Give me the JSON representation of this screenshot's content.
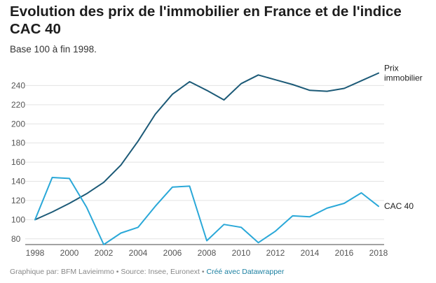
{
  "title": "Evolution des prix de l'immobilier en France et de l'indice CAC 40",
  "subtitle": "Base 100 à fin 1998.",
  "footer": {
    "prefix": "Graphique par: BFM Lavieimmo • Source: Insee, Euronext • ",
    "link": "Créé avec Datawrapper"
  },
  "colors": {
    "prix": "#1c5a77",
    "cac": "#2aa8d8",
    "grid": "#e3e3e3",
    "axis": "#444444"
  },
  "chart_data": {
    "type": "line",
    "x": [
      1998,
      1999,
      2000,
      2001,
      2002,
      2003,
      2004,
      2005,
      2006,
      2007,
      2008,
      2009,
      2010,
      2011,
      2012,
      2013,
      2014,
      2015,
      2016,
      2017,
      2018
    ],
    "series": [
      {
        "name": "Prix immobilier",
        "label_lines": [
          "Prix",
          "immobilier"
        ],
        "values": [
          100,
          108,
          117,
          127,
          139,
          157,
          182,
          210,
          231,
          244,
          235,
          225,
          242,
          251,
          246,
          241,
          235,
          234,
          237,
          245,
          253
        ]
      },
      {
        "name": "CAC 40",
        "label_lines": [
          "CAC 40"
        ],
        "values": [
          100,
          144,
          143,
          113,
          74,
          86,
          92,
          114,
          134,
          135,
          78,
          95,
          92,
          76,
          88,
          104,
          103,
          112,
          117,
          128,
          114
        ]
      }
    ],
    "xticks": [
      "1998",
      "2000",
      "2002",
      "2004",
      "2006",
      "2008",
      "2010",
      "2012",
      "2014",
      "2016",
      "2018"
    ],
    "yticks": [
      "80",
      "100",
      "120",
      "140",
      "160",
      "180",
      "200",
      "220",
      "240"
    ],
    "xlim": [
      1998,
      2018
    ],
    "ylim": [
      74,
      260
    ],
    "grid": true,
    "legend": "inline labels at line ends"
  }
}
